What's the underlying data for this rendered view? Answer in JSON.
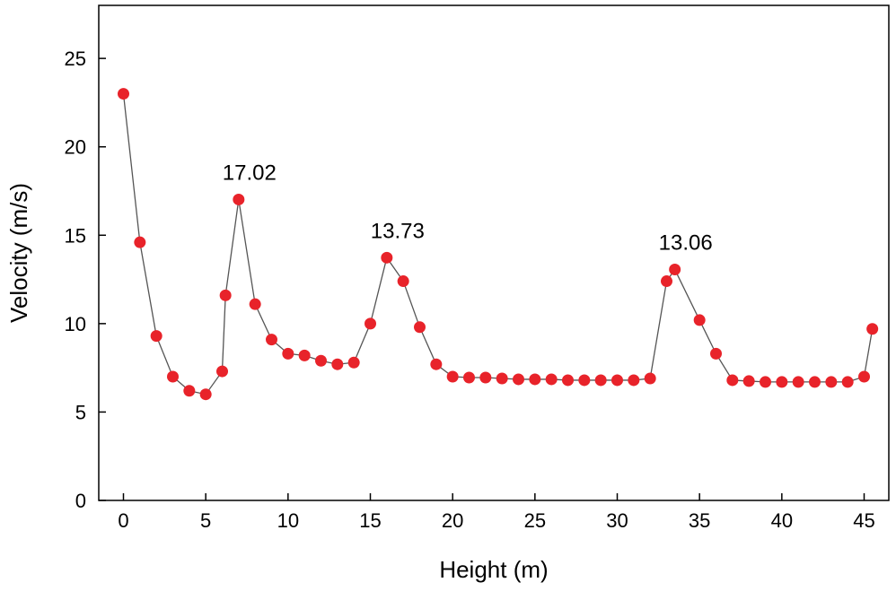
{
  "chart_data": {
    "type": "line",
    "title": "",
    "xlabel": "Height (m)",
    "ylabel": "Velocity (m/s)",
    "xlim": [
      -1.5,
      46.5
    ],
    "ylim": [
      0,
      28
    ],
    "xticks": [
      0,
      5,
      10,
      15,
      20,
      25,
      30,
      35,
      40,
      45
    ],
    "yticks": [
      0,
      5,
      10,
      15,
      20,
      25
    ],
    "grid": false,
    "series": [
      {
        "name": "Velocity",
        "marker_color": "#e8232a",
        "line_color": "#555555",
        "x": [
          0,
          1,
          2,
          3,
          4,
          5,
          6,
          6.2,
          7,
          8,
          9,
          10,
          11,
          12,
          13,
          14,
          15,
          16,
          17,
          18,
          19,
          20,
          21,
          22,
          23,
          24,
          25,
          26,
          27,
          28,
          29,
          30,
          31,
          32,
          33,
          33.5,
          35,
          36,
          37,
          38,
          39,
          40,
          41,
          42,
          43,
          44,
          45,
          45.5
        ],
        "y": [
          23.0,
          14.6,
          9.3,
          7.0,
          6.2,
          6.0,
          7.3,
          11.6,
          17.02,
          11.1,
          9.1,
          8.3,
          8.2,
          7.9,
          7.7,
          7.8,
          10.0,
          13.73,
          12.4,
          9.8,
          7.7,
          7.0,
          6.95,
          6.95,
          6.9,
          6.85,
          6.85,
          6.85,
          6.8,
          6.8,
          6.8,
          6.8,
          6.8,
          6.9,
          12.4,
          13.06,
          10.2,
          8.3,
          6.8,
          6.75,
          6.7,
          6.7,
          6.7,
          6.7,
          6.7,
          6.7,
          7.0,
          9.7
        ]
      }
    ],
    "annotations": [
      {
        "text": "17.02",
        "x": 7,
        "y": 17.02
      },
      {
        "text": "13.73",
        "x": 16,
        "y": 13.73
      },
      {
        "text": "13.06",
        "x": 33.5,
        "y": 13.06
      }
    ]
  }
}
